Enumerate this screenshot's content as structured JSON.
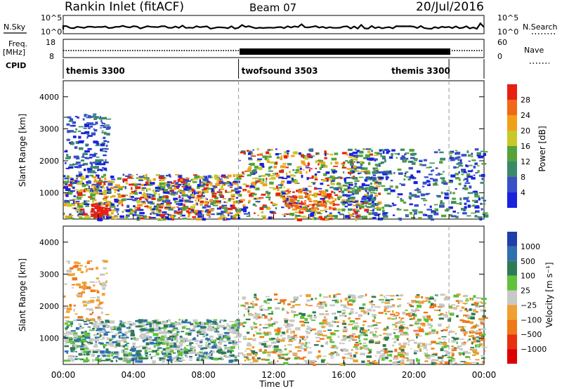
{
  "header": {
    "station": "Rankin Inlet (fitACF)",
    "beam": "Beam 07",
    "date": "20/Jul/2016"
  },
  "top_panels": {
    "nsky_label": "N.Sky",
    "nsky_ticks": [
      "10^5",
      "10^0"
    ],
    "nsearch_label": "N.Search",
    "nsearch_ticks": [
      "10^5",
      "10^0"
    ],
    "freq_label": "Freq.",
    "freq_unit": "[MHz]",
    "freq_ticks": [
      "18",
      "8"
    ],
    "nave_label": "Nave",
    "nave_ticks": [
      "60",
      "0"
    ],
    "cpid_label": "CPID",
    "cpid_segments": [
      {
        "name": "themis 3300",
        "start_h": 0,
        "end_h": 10
      },
      {
        "name": "twofsound 3503",
        "start_h": 10,
        "end_h": 22
      },
      {
        "name": "themis 3300",
        "start_h": 22,
        "end_h": 24
      }
    ]
  },
  "colors": {
    "power_scale": [
      "#1a22dd",
      "#3850c8",
      "#3a8a6a",
      "#55a23a",
      "#c8c82a",
      "#f0a018",
      "#f06818",
      "#e82010"
    ],
    "velocity_scale": [
      "#1c3fa8",
      "#2e6fb0",
      "#2e7a55",
      "#5fc23a",
      "#c8c8c4",
      "#f0a030",
      "#f07818",
      "#e83010",
      "#dd0000"
    ]
  },
  "chart_data": [
    {
      "type": "heatmap",
      "panel": "power",
      "ylabel": "Slant Range [km]",
      "xlabel": "Time UT",
      "x_ticks": [
        "00:00",
        "04:00",
        "08:00",
        "12:00",
        "16:00",
        "20:00",
        "00:00"
      ],
      "xlim_hours": [
        0,
        24
      ],
      "ylim": [
        180,
        4500
      ],
      "y_ticks": [
        1000,
        2000,
        3000,
        4000
      ],
      "colorbar": {
        "label": "Power [dB]",
        "ticks": [
          4,
          8,
          12,
          16,
          20,
          24,
          28
        ],
        "range": [
          0,
          30
        ]
      },
      "mode_boundaries_h": [
        10,
        22
      ]
    },
    {
      "type": "heatmap",
      "panel": "velocity",
      "ylabel": "Slant Range [km]",
      "xlabel": "Time UT",
      "x_ticks": [
        "00:00",
        "04:00",
        "08:00",
        "12:00",
        "16:00",
        "20:00",
        "00:00"
      ],
      "xlim_hours": [
        0,
        24
      ],
      "ylim": [
        180,
        4500
      ],
      "y_ticks": [
        1000,
        2000,
        3000,
        4000
      ],
      "colorbar": {
        "label": "Velocity [m s⁻¹]",
        "ticks": [
          "1000",
          "500",
          "100",
          "25",
          "−25",
          "−100",
          "−500",
          "−1000"
        ]
      },
      "mode_boundaries_h": [
        10,
        22
      ]
    }
  ]
}
